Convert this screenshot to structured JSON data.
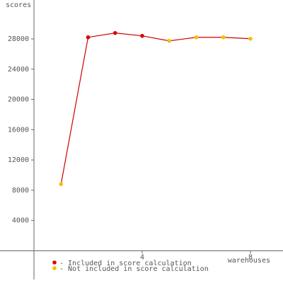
{
  "chart_data": {
    "type": "line",
    "y_label": "scores",
    "x_label": "warehouses",
    "x": [
      1,
      2,
      3,
      4,
      5,
      6,
      7,
      8
    ],
    "values": [
      8800,
      28210,
      28780,
      28400,
      27740,
      28210,
      28210,
      28020
    ],
    "included": [
      false,
      true,
      true,
      true,
      false,
      false,
      false,
      false
    ],
    "line_color": "#cc0000",
    "included_color": "#dd0000",
    "excluded_color": "#f5c000",
    "legend": [
      {
        "label": "- Included in score calculation",
        "color": "#dd0000"
      },
      {
        "label": "- Not included in score calculation",
        "color": "#f5c000"
      }
    ],
    "xlim": [
      -1.255,
      9.203
    ],
    "ylim": [
      -4260,
      33140
    ],
    "xticks": [
      4,
      8
    ],
    "yticks": [
      4000,
      8000,
      12000,
      16000,
      20000,
      24000,
      28000
    ]
  }
}
